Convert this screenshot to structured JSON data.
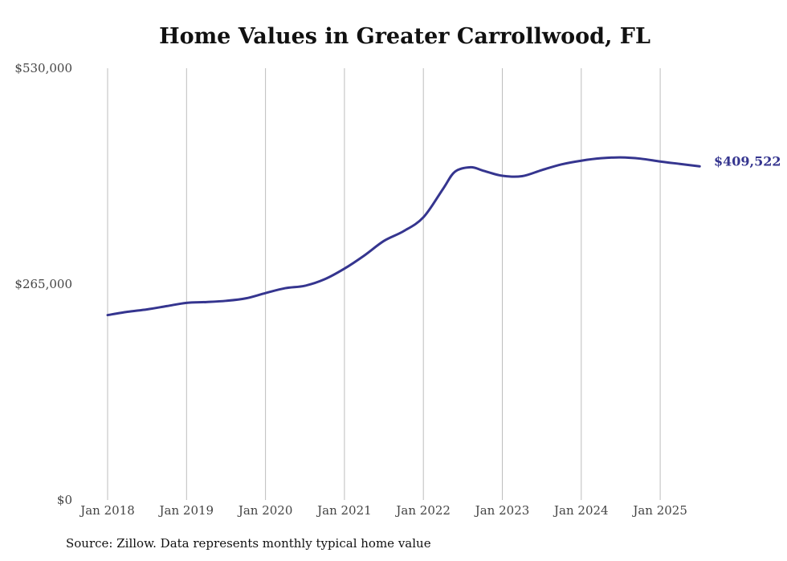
{
  "chart_data": {
    "type": "line",
    "title": "Home Values in Greater Carrollwood, FL",
    "xlabel": "",
    "ylabel": "",
    "ylim": [
      0,
      530000
    ],
    "grid": true,
    "y_ticks": [
      {
        "value": 0,
        "label": "$0"
      },
      {
        "value": 265000,
        "label": "$265,000"
      },
      {
        "value": 530000,
        "label": "$530,000"
      }
    ],
    "x_ticks": [
      {
        "value": 2018.0,
        "label": "Jan 2018"
      },
      {
        "value": 2019.0,
        "label": "Jan 2019"
      },
      {
        "value": 2020.0,
        "label": "Jan 2020"
      },
      {
        "value": 2021.0,
        "label": "Jan 2021"
      },
      {
        "value": 2022.0,
        "label": "Jan 2022"
      },
      {
        "value": 2023.0,
        "label": "Jan 2023"
      },
      {
        "value": 2024.0,
        "label": "Jan 2024"
      },
      {
        "value": 2025.0,
        "label": "Jan 2025"
      }
    ],
    "series": [
      {
        "color": "#35358f",
        "end_label": "$409,522",
        "points": [
          {
            "x": 2018.0,
            "y": 227000
          },
          {
            "x": 2018.25,
            "y": 231000
          },
          {
            "x": 2018.5,
            "y": 234000
          },
          {
            "x": 2018.75,
            "y": 238000
          },
          {
            "x": 2019.0,
            "y": 242000
          },
          {
            "x": 2019.25,
            "y": 243000
          },
          {
            "x": 2019.5,
            "y": 244500
          },
          {
            "x": 2019.75,
            "y": 247500
          },
          {
            "x": 2020.0,
            "y": 254000
          },
          {
            "x": 2020.25,
            "y": 260000
          },
          {
            "x": 2020.5,
            "y": 263000
          },
          {
            "x": 2020.75,
            "y": 271000
          },
          {
            "x": 2021.0,
            "y": 284000
          },
          {
            "x": 2021.25,
            "y": 300000
          },
          {
            "x": 2021.5,
            "y": 318000
          },
          {
            "x": 2021.75,
            "y": 330000
          },
          {
            "x": 2022.0,
            "y": 347000
          },
          {
            "x": 2022.25,
            "y": 382000
          },
          {
            "x": 2022.4,
            "y": 403000
          },
          {
            "x": 2022.6,
            "y": 408500
          },
          {
            "x": 2022.75,
            "y": 404500
          },
          {
            "x": 2023.0,
            "y": 398000
          },
          {
            "x": 2023.25,
            "y": 397500
          },
          {
            "x": 2023.5,
            "y": 405000
          },
          {
            "x": 2023.75,
            "y": 412000
          },
          {
            "x": 2024.0,
            "y": 416500
          },
          {
            "x": 2024.25,
            "y": 419500
          },
          {
            "x": 2024.5,
            "y": 420500
          },
          {
            "x": 2024.75,
            "y": 419000
          },
          {
            "x": 2025.0,
            "y": 415500
          },
          {
            "x": 2025.25,
            "y": 412500
          },
          {
            "x": 2025.5,
            "y": 409522
          }
        ]
      }
    ]
  },
  "source_note": "Source: Zillow. Data represents monthly typical home value"
}
